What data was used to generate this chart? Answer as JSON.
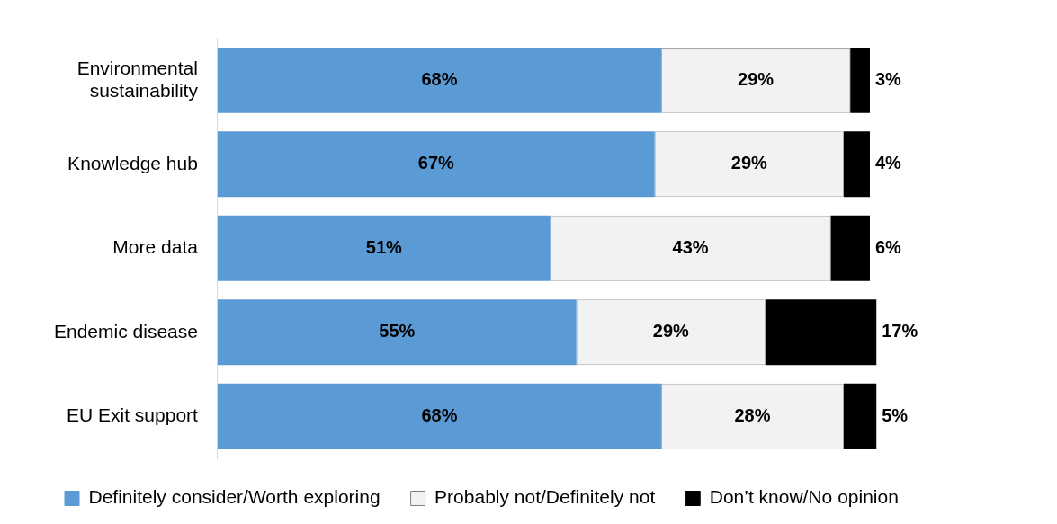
{
  "chart_data": {
    "type": "bar",
    "orientation": "horizontal",
    "stacked": true,
    "categories": [
      "Environmental sustainability",
      "Knowledge hub",
      "More data",
      "Endemic disease",
      "EU Exit support"
    ],
    "series": [
      {
        "name": "Definitely consider/Worth exploring",
        "color": "#5b9bd5",
        "values": [
          68,
          67,
          51,
          55,
          68
        ],
        "value_labels": [
          "68%",
          "67%",
          "51%",
          "55%",
          "68%"
        ]
      },
      {
        "name": "Probably not/Definitely not",
        "color": "#f2f2f2",
        "values": [
          29,
          29,
          43,
          29,
          28
        ],
        "value_labels": [
          "29%",
          "29%",
          "43%",
          "29%",
          "28%"
        ]
      },
      {
        "name": "Don’t know/No opinion",
        "color": "#000000",
        "values": [
          3,
          4,
          6,
          17,
          5
        ],
        "value_labels": [
          "3%",
          "4%",
          "6%",
          "17%",
          "5%"
        ]
      }
    ],
    "grid": false,
    "legend": "bottom",
    "tick_labels": "y"
  }
}
